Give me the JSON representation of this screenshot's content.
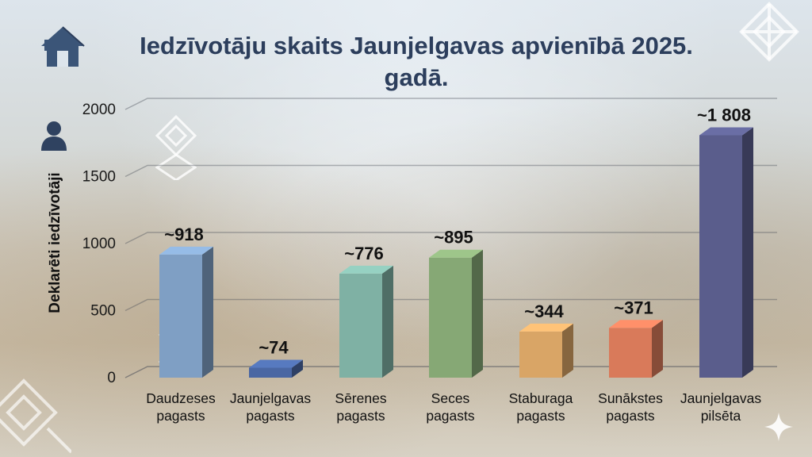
{
  "title": "Iedzīvotāju skaits Jaunjelgavas apvienībā 2025. gadā.",
  "icons": [
    "home-icon",
    "person-icon",
    "latvian-ornament-icon",
    "sparkle-icon"
  ],
  "chart_data": {
    "type": "bar",
    "title": "Iedzīvotāju skaits Jaunjelgavas apvienībā 2025. gadā.",
    "ylabel": "Deklarēti iedzīvotāji",
    "xlabel": "",
    "ylim": [
      0,
      2000
    ],
    "yticks": [
      "0",
      "500",
      "1000",
      "1500",
      "2000"
    ],
    "grid": true,
    "categories": [
      [
        "Daudzeses",
        "pagasts"
      ],
      [
        "Jaunjelgavas",
        "pagasts"
      ],
      [
        "Sērenes",
        "pagasts"
      ],
      [
        "Seces",
        "pagasts"
      ],
      [
        "Staburaga",
        "pagasts"
      ],
      [
        "Sunākstes",
        "pagasts"
      ],
      [
        "Jaunjelgavas",
        "pilsēta"
      ]
    ],
    "values": [
      918,
      74,
      776,
      895,
      344,
      371,
      1808
    ],
    "data_labels": [
      "~918",
      "~74",
      "~776",
      "~895",
      "~344",
      "~371",
      "~1 808"
    ],
    "colors": [
      "#7f9fc4",
      "#4a67a3",
      "#7fb1a4",
      "#86a875",
      "#d9a566",
      "#d97a5a",
      "#5a5d8c"
    ]
  }
}
